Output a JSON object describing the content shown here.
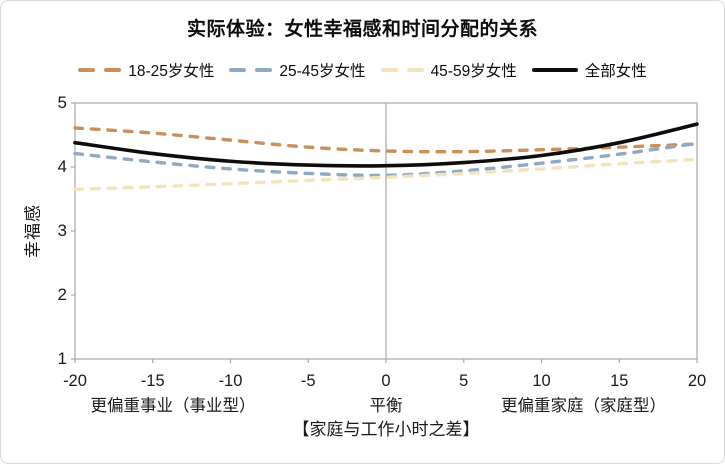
{
  "frame": {
    "background": "#FFFFFF",
    "border_color": "#D8D8D8"
  },
  "chart_data": {
    "type": "line",
    "title": "实际体验：女性幸福感和时间分配的关系",
    "xlabel": "【家庭与工作小时之差】",
    "ylabel": "幸福感",
    "xlim": [
      -20,
      20
    ],
    "ylim": [
      1,
      5
    ],
    "x_ticks": [
      -20,
      -15,
      -10,
      -5,
      0,
      5,
      10,
      15,
      20
    ],
    "y_ticks": [
      5,
      4,
      3,
      2,
      1
    ],
    "grid": "off",
    "reference_line_x": 0,
    "legend_position": "top",
    "x_zone_labels": [
      {
        "text": "更偏重事业（事业型）",
        "x": -13.7
      },
      {
        "text": "平衡",
        "x": 0
      },
      {
        "text": "更偏重家庭（家庭型）",
        "x": 12.7
      }
    ],
    "x": [
      -20,
      -15,
      -10,
      -5,
      0,
      5,
      10,
      15,
      20
    ],
    "series": [
      {
        "name": "18-25岁女性",
        "color": "#C9905C",
        "style": "dashed",
        "values": [
          4.61,
          4.53,
          4.42,
          4.31,
          4.25,
          4.24,
          4.27,
          4.31,
          4.36
        ]
      },
      {
        "name": "25-45岁女性",
        "color": "#8FA9C2",
        "style": "dashed",
        "values": [
          4.21,
          4.08,
          3.97,
          3.9,
          3.87,
          3.94,
          4.06,
          4.2,
          4.37
        ]
      },
      {
        "name": "45-59岁女性",
        "color": "#F2E3BD",
        "style": "dashed",
        "values": [
          3.65,
          3.69,
          3.74,
          3.79,
          3.84,
          3.9,
          3.97,
          4.05,
          4.12
        ]
      },
      {
        "name": "全部女性",
        "color": "#0D0D0D",
        "style": "solid",
        "values": [
          4.38,
          4.21,
          4.09,
          4.03,
          4.02,
          4.07,
          4.18,
          4.38,
          4.67
        ]
      }
    ],
    "axis_color": "#A6A6A6"
  }
}
